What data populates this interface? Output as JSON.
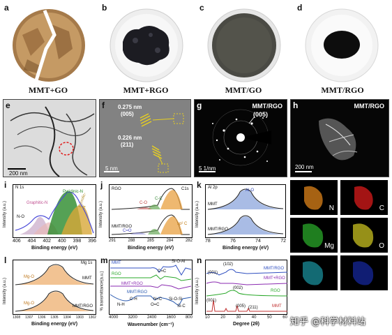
{
  "panels": {
    "a": {
      "letter": "a",
      "caption": "MMT+GO"
    },
    "b": {
      "letter": "b",
      "caption": "MMT+RGO"
    },
    "c": {
      "letter": "c",
      "caption": "MMT/GO"
    },
    "d": {
      "letter": "d",
      "caption": "MMT/RGO"
    },
    "e": {
      "letter": "e",
      "scale": "200 nm"
    },
    "f": {
      "letter": "f",
      "scale": "5 nm",
      "d1": "0.275 nm",
      "h1": "(005)",
      "d2": "0.226 nm",
      "h2": "(211)"
    },
    "g": {
      "letter": "g",
      "title": "MMT/RGO",
      "ring": "(005)",
      "scale": "5 1/nm"
    },
    "h": {
      "letter": "h",
      "title": "MMT/RGO",
      "scale": "200 nm",
      "eds": [
        "N",
        "C",
        "Mg",
        "O",
        "",
        ""
      ]
    },
    "i": {
      "letter": "i",
      "tag": "N 1s",
      "peaks": [
        "Graphitic-N",
        "N-O",
        "Pyridinic-N",
        "Pyrrolic-N"
      ],
      "xlabel": "Binding energy (eV)",
      "ylabel": "Intensity (a.u.)",
      "xticks": [
        "406",
        "404",
        "402",
        "400",
        "398",
        "396"
      ]
    },
    "j": {
      "letter": "j",
      "tag": "C1s",
      "top": "RGO",
      "bottom": "MMT/RGO",
      "peaks": [
        "C-O",
        "C-C",
        "C=O",
        "sp² C"
      ],
      "xlabel": "Binding energy (eV)",
      "ylabel": "Intensity (a.u.)",
      "xticks": [
        "291",
        "288",
        "285",
        "284",
        "282"
      ]
    },
    "k": {
      "letter": "k",
      "tag": "Al 2p",
      "top": "MMT",
      "bottom": "MMT/RGO",
      "peak": "Al-O",
      "xlabel": "Binding energy (eV)",
      "ylabel": "Intensity (a.u.)",
      "xticks": [
        "78",
        "76",
        "74",
        "72"
      ]
    },
    "l": {
      "letter": "l",
      "tag": "Mg 1s",
      "top": "MMT",
      "bottom": "MMT/RGO",
      "peak": "Mg-O",
      "xlabel": "Binding energy (eV)",
      "ylabel": "Intensity (a.u.)",
      "xticks": [
        "1308",
        "1307",
        "1306",
        "1305",
        "1304",
        "1303",
        "1302"
      ]
    },
    "m": {
      "letter": "m",
      "series": [
        "MMT",
        "RGO",
        "MMT+RGO",
        "MMT/RGO"
      ],
      "annotations": [
        "Si-O-Al",
        "C=C",
        "C-H",
        "N-H",
        "N=C",
        "O=C",
        "Si-O-Si",
        "Si-C"
      ],
      "xlabel": "Wavenumber (cm⁻¹)",
      "ylabel": "% transmittance(a.u.)",
      "xticks": [
        "4000",
        "3200",
        "2400",
        "1600",
        "800"
      ]
    },
    "n": {
      "letter": "n",
      "series": [
        "MMT/RGO",
        "MMT+RGO",
        "RGO",
        "MMT"
      ],
      "peaks": [
        "(002)",
        "(001)",
        "(102)",
        "(001)",
        "(005)",
        "(211)"
      ],
      "xlabel": "Degree (2θ)",
      "ylabel": "Intensity (a.u.)",
      "xticks": [
        "10",
        "20",
        "30",
        "40",
        "50",
        "60"
      ]
    }
  },
  "watermark": "知乎 @科学材料站"
}
